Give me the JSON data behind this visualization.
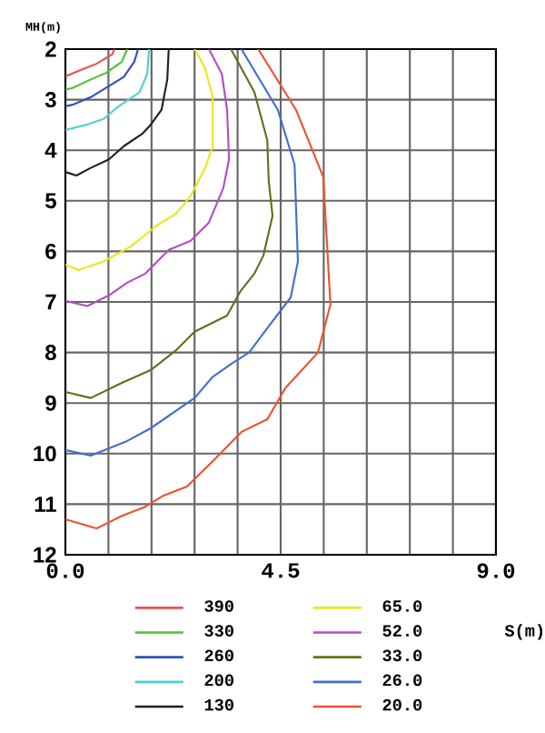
{
  "chart_data": {
    "type": "line",
    "xlabel": "S(m)",
    "ylabel": "MH(m)",
    "xlim": [
      0,
      9
    ],
    "ylim": [
      12,
      2
    ],
    "xticks": [
      {
        "value": 0,
        "label": "0.0"
      },
      {
        "value": 0.9,
        "label": null
      },
      {
        "value": 1.8,
        "label": null
      },
      {
        "value": 2.7,
        "label": null
      },
      {
        "value": 3.6,
        "label": null
      },
      {
        "value": 4.5,
        "label": "4.5"
      },
      {
        "value": 5.4,
        "label": null
      },
      {
        "value": 6.3,
        "label": null
      },
      {
        "value": 7.2,
        "label": null
      },
      {
        "value": 8.1,
        "label": null
      },
      {
        "value": 9,
        "label": "9.0"
      }
    ],
    "yticks": [
      2,
      3,
      4,
      5,
      6,
      7,
      8,
      9,
      10,
      11,
      12
    ],
    "grid": true,
    "legend": "bottom",
    "marker": "none",
    "series": [
      {
        "name": "390",
        "color": "#f05050",
        "x": [
          1.03,
          0.98,
          0.65,
          0.27,
          0
        ],
        "values": [
          2.0,
          2.1,
          2.29,
          2.43,
          2.54
        ]
      },
      {
        "name": "330",
        "color": "#50c030",
        "x": [
          1.29,
          1.18,
          0.85,
          0.53,
          0.15,
          0
        ],
        "values": [
          2.0,
          2.25,
          2.47,
          2.6,
          2.77,
          2.8
        ]
      },
      {
        "name": "260",
        "color": "#3050c0",
        "x": [
          1.52,
          1.44,
          1.22,
          0.91,
          0.53,
          0.15,
          0
        ],
        "values": [
          2.0,
          2.25,
          2.55,
          2.73,
          2.95,
          3.1,
          3.13
        ]
      },
      {
        "name": "200",
        "color": "#50d0d0",
        "x": [
          1.75,
          1.71,
          1.55,
          1.1,
          0.8,
          0.42,
          0
        ],
        "values": [
          2.0,
          2.49,
          2.85,
          3.14,
          3.38,
          3.5,
          3.6
        ]
      },
      {
        "name": "130",
        "color": "#202020",
        "x": [
          2.16,
          2.13,
          2.01,
          1.78,
          1.6,
          1.22,
          0.91,
          0.53,
          0.23,
          0
        ],
        "values": [
          2.0,
          2.6,
          3.2,
          3.5,
          3.68,
          3.92,
          4.18,
          4.35,
          4.5,
          4.43
        ]
      },
      {
        "name": "65.0",
        "color": "#e8e820",
        "x": [
          2.7,
          2.92,
          3.08,
          3.08,
          2.92,
          2.62,
          2.32,
          1.94,
          1.37,
          0.8,
          0.27,
          0
        ],
        "values": [
          2.0,
          2.38,
          2.95,
          3.92,
          4.35,
          4.9,
          5.25,
          5.47,
          5.9,
          6.2,
          6.37,
          6.26
        ]
      },
      {
        "name": "52.0",
        "color": "#b050c0",
        "x": [
          3.0,
          3.27,
          3.38,
          3.42,
          3.3,
          3.0,
          2.62,
          2.16,
          1.67,
          1.29,
          0.91,
          0.46,
          0
        ],
        "values": [
          2.0,
          2.49,
          3.2,
          4.18,
          4.75,
          5.43,
          5.79,
          5.97,
          6.44,
          6.62,
          6.87,
          7.08,
          6.98
        ]
      },
      {
        "name": "33.0",
        "color": "#607020",
        "x": [
          3.46,
          3.95,
          4.22,
          4.25,
          4.33,
          4.14,
          3.95,
          3.65,
          3.38,
          2.7,
          2.32,
          1.78,
          1.18,
          0.53,
          0
        ],
        "values": [
          2.0,
          2.85,
          3.8,
          4.6,
          5.3,
          6.08,
          6.44,
          6.8,
          7.27,
          7.59,
          7.95,
          8.35,
          8.6,
          8.9,
          8.78
        ]
      },
      {
        "name": "26.0",
        "color": "#4070d0",
        "x": [
          3.68,
          4.44,
          4.79,
          4.86,
          4.71,
          4.22,
          3.84,
          3.46,
          3.08,
          2.7,
          1.78,
          1.29,
          0.53,
          0
        ],
        "values": [
          2.0,
          3.2,
          4.28,
          6.2,
          6.91,
          7.52,
          8.0,
          8.23,
          8.48,
          8.9,
          9.5,
          9.75,
          10.04,
          9.93
        ]
      },
      {
        "name": "20.0",
        "color": "#f05030",
        "x": [
          4.03,
          4.82,
          5.39,
          5.54,
          5.28,
          4.6,
          4.22,
          3.68,
          3.08,
          2.54,
          2.05,
          1.67,
          1.18,
          0.65,
          0
        ],
        "values": [
          2.0,
          3.2,
          4.53,
          7.05,
          8.0,
          8.7,
          9.32,
          9.57,
          10.15,
          10.65,
          10.83,
          11.05,
          11.23,
          11.48,
          11.3
        ]
      }
    ]
  }
}
